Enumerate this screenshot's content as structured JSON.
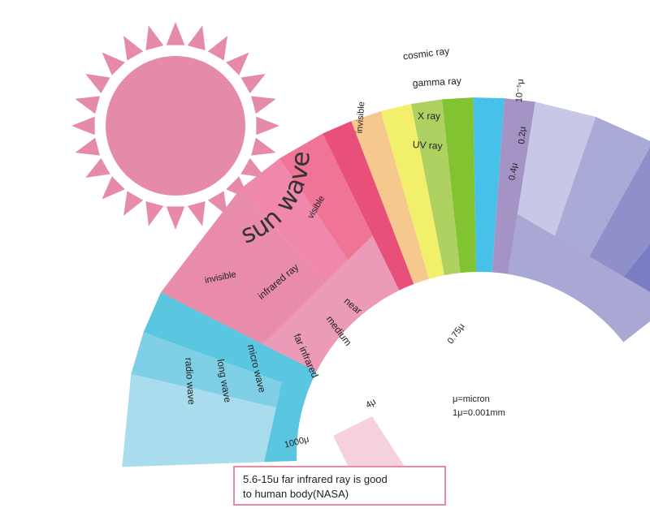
{
  "title": "sun wave",
  "note": {
    "line1": "5.6-15u far infrared ray is good",
    "line2": "to human body(NASA)"
  },
  "legend": {
    "line1": "μ=micron",
    "line2": "1μ=0.001mm"
  },
  "boundaries": {
    "b1": "10⁻⁵μ",
    "b2": "0.2μ",
    "b3": "0.4μ",
    "b4": "0.75μ",
    "b5": "4μ",
    "b6": "1000μ"
  },
  "labels": {
    "invisible_top": "invisible",
    "cosmic": "cosmic ray",
    "gamma": "gamma ray",
    "xray": "X ray",
    "uv": "UV ray",
    "visible": "visible",
    "infrared": "infrared ray",
    "near": "near",
    "medium": "medium",
    "far": "far infrared",
    "invisible_bottom": "invisible",
    "micro": "micro wave",
    "long": "long wave",
    "radio": "radio wave"
  },
  "colors": {
    "sun": "#e58aab",
    "cosmic": "#7b7dc2",
    "gamma": "#8f8fcc",
    "xray": "#aaaad6",
    "uv": "#c8c8e6",
    "invisible_top": "#a9a7d3",
    "violet": "#a493c5",
    "blue": "#47c1e9",
    "green": "#82c332",
    "lightgreen": "#aed162",
    "yellow": "#f2ef6b",
    "orange": "#f6c88e",
    "red": "#e8507a",
    "infrared": "#eb9ab8",
    "near": "#ef7496",
    "medium": "#f088ae",
    "far": "#e98bab",
    "micro": "#5ac6e0",
    "long": "#7fcfe6",
    "radio": "#a9ddee"
  }
}
